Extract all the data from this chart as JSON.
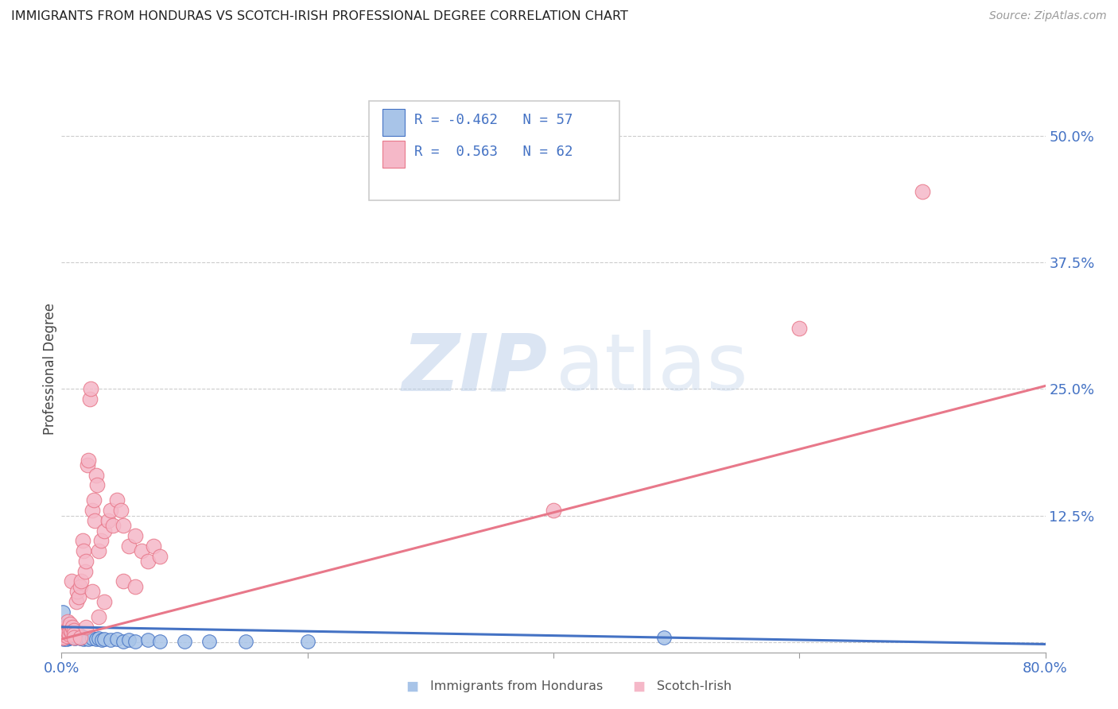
{
  "title": "IMMIGRANTS FROM HONDURAS VS SCOTCH-IRISH PROFESSIONAL DEGREE CORRELATION CHART",
  "source": "Source: ZipAtlas.com",
  "ylabel": "Professional Degree",
  "yticks": [
    0.0,
    0.125,
    0.25,
    0.375,
    0.5
  ],
  "ytick_labels": [
    "",
    "12.5%",
    "25.0%",
    "37.5%",
    "50.0%"
  ],
  "xlim": [
    0.0,
    0.8
  ],
  "ylim": [
    -0.01,
    0.55
  ],
  "color_blue": "#A8C4E8",
  "color_pink": "#F5B8C8",
  "line_blue": "#4472C4",
  "line_pink": "#E8788A",
  "scatter_blue": [
    [
      0.001,
      0.01
    ],
    [
      0.001,
      0.005
    ],
    [
      0.001,
      0.008
    ],
    [
      0.001,
      0.015
    ],
    [
      0.002,
      0.005
    ],
    [
      0.002,
      0.008
    ],
    [
      0.002,
      0.012
    ],
    [
      0.002,
      0.003
    ],
    [
      0.003,
      0.007
    ],
    [
      0.003,
      0.01
    ],
    [
      0.003,
      0.005
    ],
    [
      0.003,
      0.015
    ],
    [
      0.004,
      0.005
    ],
    [
      0.004,
      0.008
    ],
    [
      0.004,
      0.003
    ],
    [
      0.005,
      0.01
    ],
    [
      0.005,
      0.006
    ],
    [
      0.005,
      0.012
    ],
    [
      0.006,
      0.008
    ],
    [
      0.006,
      0.004
    ],
    [
      0.007,
      0.009
    ],
    [
      0.007,
      0.005
    ],
    [
      0.008,
      0.007
    ],
    [
      0.008,
      0.01
    ],
    [
      0.009,
      0.005
    ],
    [
      0.009,
      0.008
    ],
    [
      0.01,
      0.006
    ],
    [
      0.01,
      0.012
    ],
    [
      0.011,
      0.004
    ],
    [
      0.012,
      0.007
    ],
    [
      0.013,
      0.005
    ],
    [
      0.014,
      0.008
    ],
    [
      0.015,
      0.004
    ],
    [
      0.016,
      0.006
    ],
    [
      0.017,
      0.005
    ],
    [
      0.018,
      0.003
    ],
    [
      0.019,
      0.005
    ],
    [
      0.02,
      0.004
    ],
    [
      0.022,
      0.003
    ],
    [
      0.025,
      0.004
    ],
    [
      0.028,
      0.003
    ],
    [
      0.03,
      0.004
    ],
    [
      0.033,
      0.002
    ],
    [
      0.035,
      0.003
    ],
    [
      0.04,
      0.002
    ],
    [
      0.045,
      0.003
    ],
    [
      0.05,
      0.001
    ],
    [
      0.055,
      0.002
    ],
    [
      0.06,
      0.001
    ],
    [
      0.07,
      0.002
    ],
    [
      0.08,
      0.001
    ],
    [
      0.1,
      0.001
    ],
    [
      0.12,
      0.001
    ],
    [
      0.15,
      0.001
    ],
    [
      0.2,
      0.001
    ],
    [
      0.49,
      0.005
    ],
    [
      0.001,
      0.03
    ]
  ],
  "scatter_pink": [
    [
      0.001,
      0.005
    ],
    [
      0.001,
      0.008
    ],
    [
      0.002,
      0.01
    ],
    [
      0.002,
      0.005
    ],
    [
      0.003,
      0.008
    ],
    [
      0.003,
      0.012
    ],
    [
      0.004,
      0.006
    ],
    [
      0.004,
      0.015
    ],
    [
      0.005,
      0.01
    ],
    [
      0.005,
      0.02
    ],
    [
      0.006,
      0.008
    ],
    [
      0.006,
      0.015
    ],
    [
      0.007,
      0.012
    ],
    [
      0.007,
      0.018
    ],
    [
      0.008,
      0.01
    ],
    [
      0.008,
      0.06
    ],
    [
      0.009,
      0.015
    ],
    [
      0.01,
      0.012
    ],
    [
      0.01,
      0.008
    ],
    [
      0.012,
      0.04
    ],
    [
      0.013,
      0.05
    ],
    [
      0.014,
      0.045
    ],
    [
      0.015,
      0.055
    ],
    [
      0.016,
      0.06
    ],
    [
      0.017,
      0.1
    ],
    [
      0.018,
      0.09
    ],
    [
      0.019,
      0.07
    ],
    [
      0.02,
      0.08
    ],
    [
      0.021,
      0.175
    ],
    [
      0.022,
      0.18
    ],
    [
      0.023,
      0.24
    ],
    [
      0.024,
      0.25
    ],
    [
      0.025,
      0.13
    ],
    [
      0.026,
      0.14
    ],
    [
      0.027,
      0.12
    ],
    [
      0.028,
      0.165
    ],
    [
      0.029,
      0.155
    ],
    [
      0.03,
      0.09
    ],
    [
      0.032,
      0.1
    ],
    [
      0.035,
      0.11
    ],
    [
      0.038,
      0.12
    ],
    [
      0.04,
      0.13
    ],
    [
      0.042,
      0.115
    ],
    [
      0.045,
      0.14
    ],
    [
      0.048,
      0.13
    ],
    [
      0.05,
      0.115
    ],
    [
      0.055,
      0.095
    ],
    [
      0.06,
      0.105
    ],
    [
      0.065,
      0.09
    ],
    [
      0.07,
      0.08
    ],
    [
      0.075,
      0.095
    ],
    [
      0.08,
      0.085
    ],
    [
      0.4,
      0.13
    ],
    [
      0.6,
      0.31
    ],
    [
      0.7,
      0.445
    ],
    [
      0.01,
      0.005
    ],
    [
      0.015,
      0.005
    ],
    [
      0.02,
      0.015
    ],
    [
      0.025,
      0.05
    ],
    [
      0.03,
      0.025
    ],
    [
      0.035,
      0.04
    ],
    [
      0.05,
      0.06
    ],
    [
      0.06,
      0.055
    ]
  ],
  "blue_line_x": [
    0.0,
    0.8
  ],
  "blue_line_y": [
    0.015,
    -0.002
  ],
  "pink_line_x": [
    0.0,
    0.8
  ],
  "pink_line_y": [
    0.003,
    0.253
  ]
}
